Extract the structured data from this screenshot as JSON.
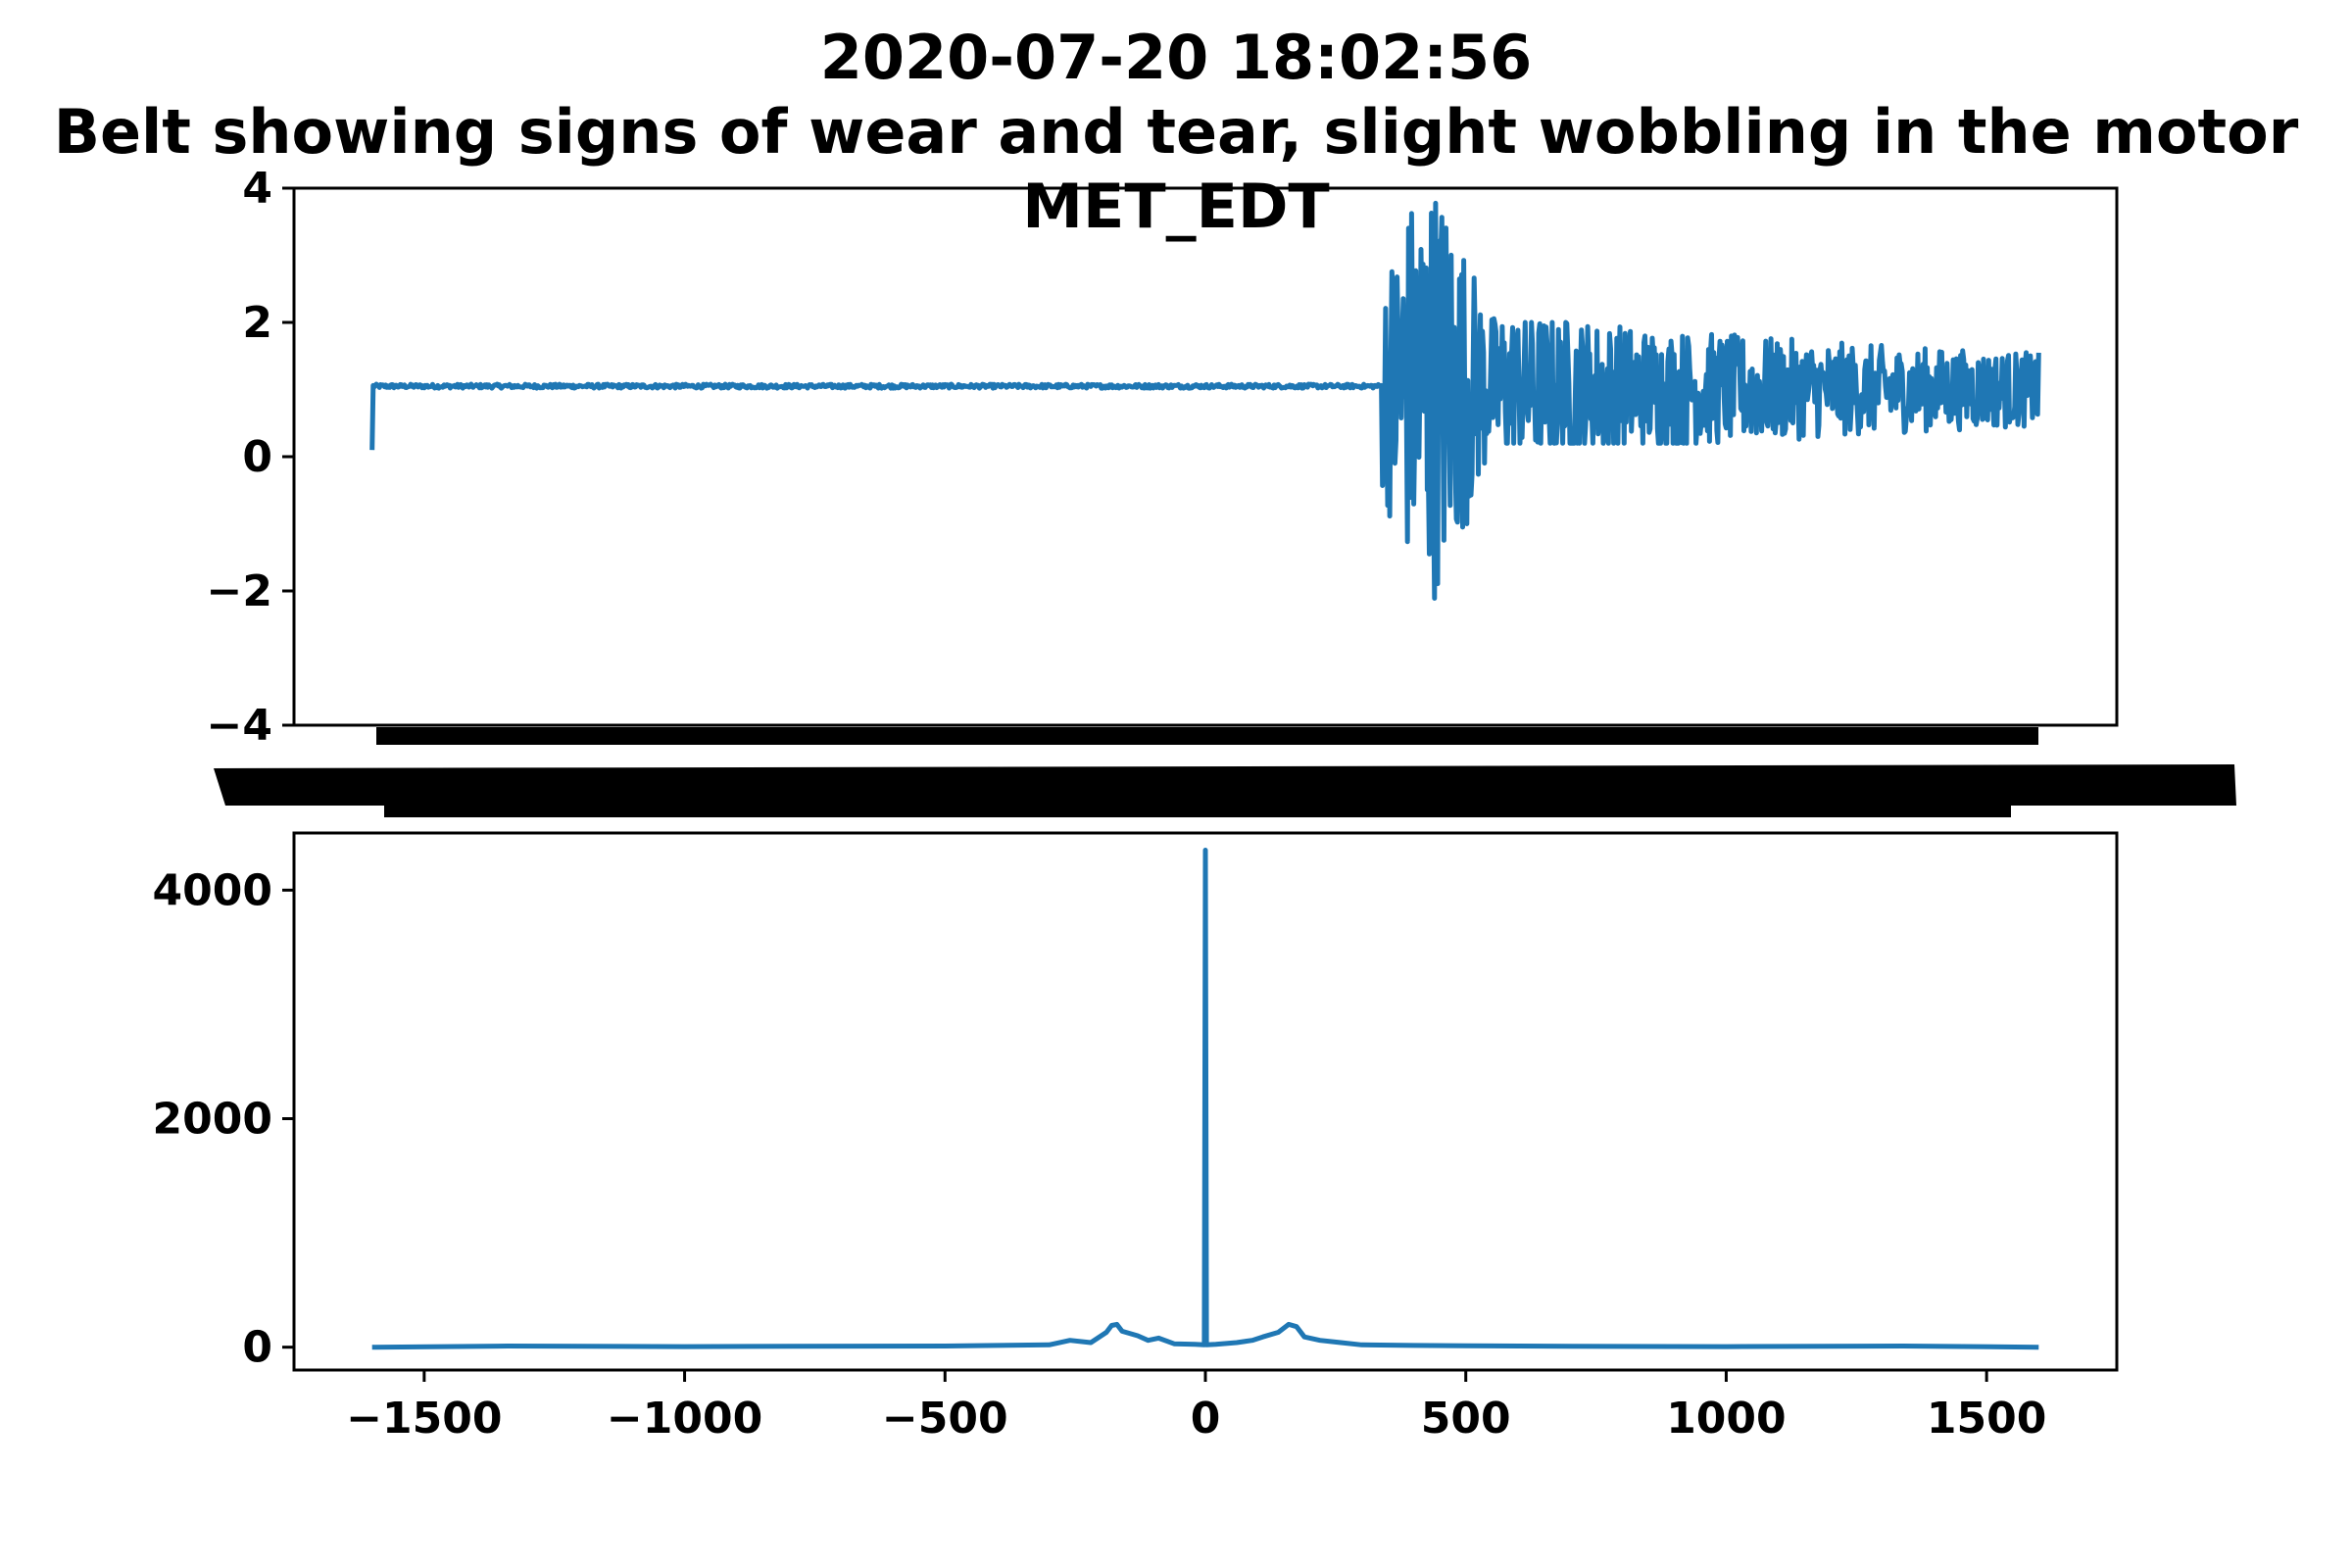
{
  "chart_data": [
    {
      "type": "line",
      "title": "2020-07-20 18:02:56\nBelt showing signs of wear and tear, slight wobbling in the motor\nMET_EDT",
      "title_lines": [
        "2020-07-20 18:02:56",
        "Belt showing signs of wear and tear, slight wobbling in the motor",
        "MET_EDT"
      ],
      "xlabel": "",
      "ylabel": "",
      "ylim": [
        -4,
        4
      ],
      "yticks": [
        4,
        2,
        0,
        -2,
        -4
      ],
      "ytick_labels": [
        "4",
        "2",
        "0",
        "−2",
        "−4"
      ],
      "x_tick_labels_note": "illegible overlapping timestamp labels",
      "grid": false,
      "color": "#1f77b4",
      "series": [
        {
          "description": "time-domain vibration signal",
          "segments": [
            {
              "phase": "flat",
              "approx_level": 1.05,
              "start_value": 0.1
            },
            {
              "phase": "burst",
              "peak_max": 4.0,
              "peak_min": -2.4
            },
            {
              "phase": "decaying oscillation",
              "range": [
                0.2,
                2.0
              ]
            }
          ]
        }
      ]
    },
    {
      "type": "line",
      "title": "",
      "xlabel": "",
      "ylabel": "",
      "xlim": [
        -1750,
        1750
      ],
      "xticks": [
        -1500,
        -1000,
        -500,
        0,
        500,
        1000,
        1500
      ],
      "xtick_labels": [
        "−1500",
        "−1000",
        "−500",
        "0",
        "500",
        "1000",
        "1500"
      ],
      "ylim": [
        -200,
        4500
      ],
      "yticks": [
        0,
        2000,
        4000
      ],
      "ytick_labels": [
        "0",
        "2000",
        "4000"
      ],
      "grid": false,
      "color": "#1f77b4",
      "series": [
        {
          "description": "frequency spectrum magnitude",
          "points": [
            [
              -1600,
              0
            ],
            [
              -1340,
              10
            ],
            [
              -1000,
              5
            ],
            [
              -800,
              8
            ],
            [
              -500,
              10
            ],
            [
              -400,
              15
            ],
            [
              -300,
              20
            ],
            [
              -260,
              60
            ],
            [
              -220,
              40
            ],
            [
              -190,
              130
            ],
            [
              -180,
              190
            ],
            [
              -170,
              200
            ],
            [
              -160,
              140
            ],
            [
              -130,
              100
            ],
            [
              -110,
              60
            ],
            [
              -90,
              80
            ],
            [
              -60,
              30
            ],
            [
              -20,
              25
            ],
            [
              -2,
              20
            ],
            [
              0,
              4350
            ],
            [
              2,
              20
            ],
            [
              20,
              25
            ],
            [
              60,
              40
            ],
            [
              90,
              60
            ],
            [
              110,
              90
            ],
            [
              140,
              130
            ],
            [
              160,
              200
            ],
            [
              175,
              180
            ],
            [
              190,
              90
            ],
            [
              220,
              60
            ],
            [
              260,
              40
            ],
            [
              300,
              20
            ],
            [
              400,
              15
            ],
            [
              500,
              12
            ],
            [
              700,
              8
            ],
            [
              1000,
              5
            ],
            [
              1340,
              10
            ],
            [
              1600,
              0
            ]
          ]
        }
      ]
    }
  ]
}
